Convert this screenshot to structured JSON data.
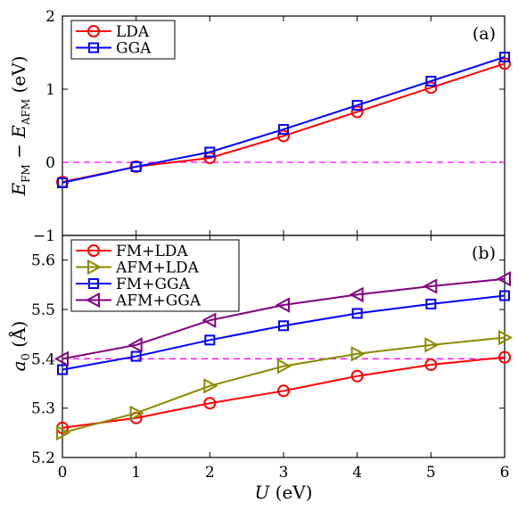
{
  "chart_data": [
    {
      "type": "line",
      "panel_label": "(a)",
      "ylabel": "E_FM − E_AFM (eV)",
      "ylabel_parts": {
        "e1": "E",
        "s1": "FM",
        "minus": " − ",
        "e2": "E",
        "s2": "AFM",
        "unit": " (eV)"
      },
      "x": [
        0,
        1,
        2,
        3,
        4,
        5,
        6
      ],
      "xlim": [
        0,
        6
      ],
      "ylim": [
        -1,
        2
      ],
      "yticks": [
        -1,
        0,
        1,
        2
      ],
      "ytick_labels": [
        "−1",
        "0",
        "1",
        "2"
      ],
      "reference_line": 0,
      "legend_position": "top-left",
      "series": [
        {
          "name": "LDA",
          "marker": "circle",
          "color": "#ff0000",
          "values": [
            -0.27,
            -0.06,
            0.06,
            0.36,
            0.69,
            1.02,
            1.35
          ]
        },
        {
          "name": "GGA",
          "marker": "square",
          "color": "#0000ff",
          "values": [
            -0.28,
            -0.06,
            0.14,
            0.45,
            0.78,
            1.11,
            1.44
          ]
        }
      ]
    },
    {
      "type": "line",
      "panel_label": "(b)",
      "ylabel": "a0 (Å)",
      "ylabel_parts": {
        "a": "a",
        "sub": "0",
        "unit": " (Å)"
      },
      "xlabel": "U (eV)",
      "xlabel_parts": {
        "u": "U",
        "unit": " (eV)"
      },
      "x": [
        0,
        1,
        2,
        3,
        4,
        5,
        6
      ],
      "xlim": [
        0,
        6
      ],
      "ylim": [
        5.2,
        5.65
      ],
      "xticks": [
        0,
        1,
        2,
        3,
        4,
        5,
        6
      ],
      "yticks": [
        5.2,
        5.3,
        5.4,
        5.5,
        5.6
      ],
      "ytick_labels": [
        "5.2",
        "5.3",
        "5.4",
        "5.5",
        "5.6"
      ],
      "reference_line": 5.4,
      "legend_position": "top-left",
      "series": [
        {
          "name": "FM+LDA",
          "marker": "circle",
          "color": "#ff0000",
          "values": [
            5.26,
            5.28,
            5.31,
            5.335,
            5.365,
            5.388,
            5.403
          ]
        },
        {
          "name": "AFM+LDA",
          "marker": "triangle-right",
          "color": "#8b8b00",
          "values": [
            5.25,
            5.29,
            5.345,
            5.385,
            5.41,
            5.428,
            5.443
          ]
        },
        {
          "name": "FM+GGA",
          "marker": "square",
          "color": "#0000ff",
          "values": [
            5.378,
            5.405,
            5.438,
            5.467,
            5.492,
            5.511,
            5.528
          ]
        },
        {
          "name": "AFM+GGA",
          "marker": "triangle-left",
          "color": "#800080",
          "values": [
            5.4,
            5.428,
            5.478,
            5.509,
            5.53,
            5.547,
            5.562
          ]
        }
      ]
    }
  ],
  "colors": {
    "reference_line": "#ff00ff",
    "axes": "#000000"
  }
}
